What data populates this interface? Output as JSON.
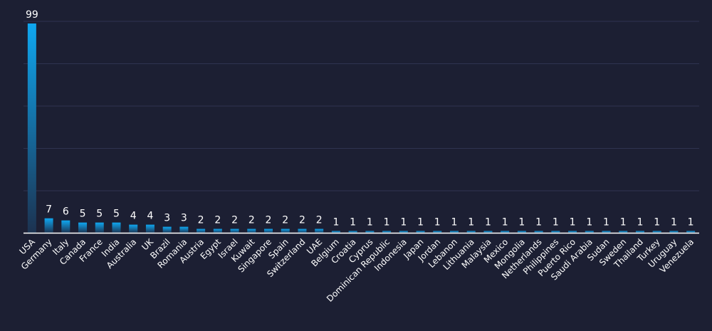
{
  "chart_data": {
    "type": "bar",
    "title": "",
    "xlabel": "",
    "ylabel": "",
    "grid": true,
    "ylim": [
      0,
      100
    ],
    "colors": {
      "bar_top": "#0fa7f0",
      "bar_bottom": "#1c3250",
      "background": "#1c1f33",
      "grid": "#2f3350"
    },
    "categories": [
      "USA",
      "Germany",
      "Italy",
      "Canada",
      "France",
      "India",
      "Australia",
      "UK",
      "Brazil",
      "Romania",
      "Austria",
      "Egypt",
      "Israel",
      "Kuwait",
      "Singapore",
      "Spain",
      "Switzerland",
      "UAE",
      "Belgium",
      "Croatia",
      "Cyprus",
      "Dominican Republic",
      "Indonesia",
      "Japan",
      "Jordan",
      "Lebanon",
      "Lithuania",
      "Malaysia",
      "Mexico",
      "Mongolia",
      "Netherlands",
      "Philippines",
      "Puerto Rico",
      "Saudi Arabia",
      "Sudan",
      "Sweden",
      "Thailand",
      "Turkey",
      "Uruguay",
      "Venezuela"
    ],
    "values": [
      99,
      7,
      6,
      5,
      5,
      5,
      4,
      4,
      3,
      3,
      2,
      2,
      2,
      2,
      2,
      2,
      2,
      2,
      1,
      1,
      1,
      1,
      1,
      1,
      1,
      1,
      1,
      1,
      1,
      1,
      1,
      1,
      1,
      1,
      1,
      1,
      1,
      1,
      1,
      1
    ]
  }
}
